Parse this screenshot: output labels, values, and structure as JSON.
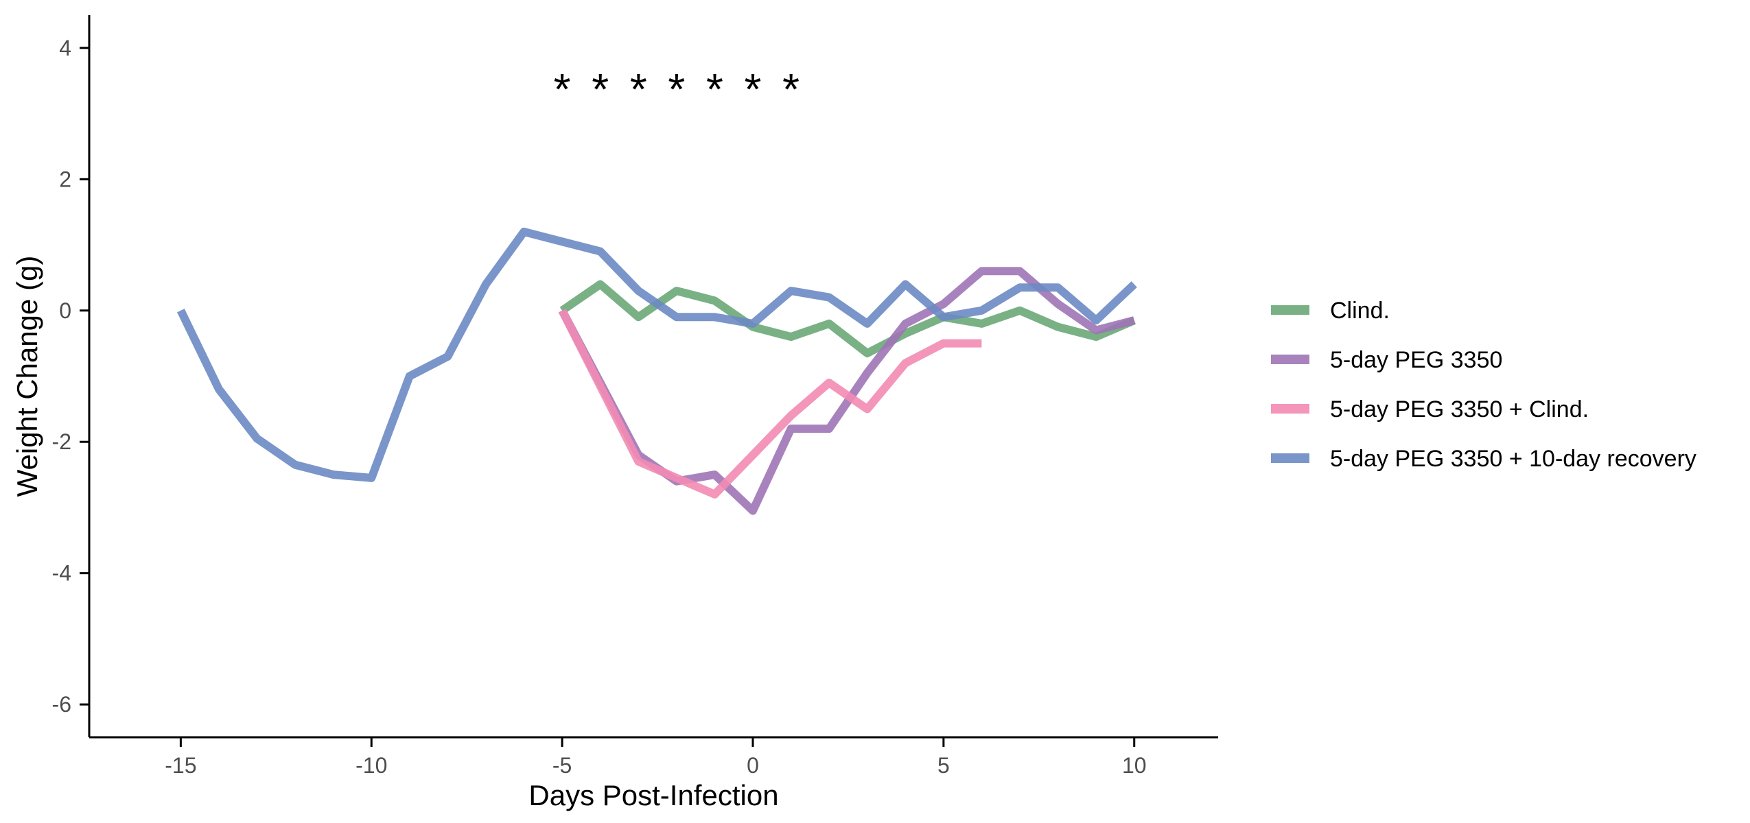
{
  "chart_data": {
    "type": "line",
    "xlabel": "Days Post-Infection",
    "ylabel": "Weight Change (g)",
    "xlim": [
      -17.4,
      12.2
    ],
    "ylim": [
      -6.5,
      4.5
    ],
    "x_ticks": [
      -15,
      -10,
      -5,
      0,
      5,
      10
    ],
    "x_tick_labels": [
      "-15",
      "-10",
      "-5",
      "0",
      "5",
      "10"
    ],
    "y_ticks": [
      4,
      2,
      0,
      -2,
      -4,
      -6
    ],
    "y_tick_labels": [
      "4",
      "2",
      "0",
      "-2",
      "-4",
      "-6"
    ],
    "grid": false,
    "legend_position": "right",
    "annotations": {
      "text": "*",
      "x": [
        -5,
        -4,
        -3,
        -2,
        -1,
        0,
        1
      ],
      "y": 3.6
    },
    "series": [
      {
        "name": "Clind.",
        "color": "#6aa878",
        "x": [
          -5,
          -4,
          -3,
          -2,
          -1,
          0,
          1,
          2,
          3,
          4,
          5,
          6,
          7,
          8,
          9,
          10
        ],
        "y": [
          0.0,
          0.4,
          -0.1,
          0.3,
          0.15,
          -0.25,
          -0.4,
          -0.2,
          -0.65,
          -0.35,
          -0.1,
          -0.2,
          0.0,
          -0.25,
          -0.4,
          -0.15
        ]
      },
      {
        "name": "5-day PEG 3350",
        "color": "#9e74b6",
        "x": [
          -5,
          -4,
          -3,
          -2,
          -1,
          0,
          1,
          2,
          3,
          4,
          5,
          6,
          7,
          8,
          9,
          10
        ],
        "y": [
          0.0,
          -1.1,
          -2.2,
          -2.6,
          -2.5,
          -3.05,
          -1.8,
          -1.8,
          -0.95,
          -0.2,
          0.1,
          0.6,
          0.6,
          0.1,
          -0.3,
          -0.15
        ]
      },
      {
        "name": "5-day PEG 3350 + Clind.",
        "color": "#f28bb3",
        "x": [
          -5,
          -4,
          -3,
          -2,
          -1,
          0,
          1,
          2,
          3,
          4,
          5,
          6
        ],
        "y": [
          0.0,
          -1.15,
          -2.3,
          -2.55,
          -2.8,
          -2.2,
          -1.6,
          -1.1,
          -1.5,
          -0.8,
          -0.5,
          -0.5
        ]
      },
      {
        "name": "5-day PEG 3350 + 10-day recovery",
        "color": "#6b8ac3",
        "x": [
          -15,
          -14,
          -13,
          -12,
          -11,
          -10,
          -9,
          -8,
          -7,
          -6,
          -5,
          -4,
          -3,
          -2,
          -1,
          0,
          1,
          2,
          3,
          4,
          5,
          6,
          7,
          8,
          9,
          10
        ],
        "y": [
          0.0,
          -1.2,
          -1.95,
          -2.35,
          -2.5,
          -2.55,
          -1.0,
          -0.7,
          0.4,
          1.2,
          1.05,
          0.9,
          0.3,
          -0.1,
          -0.1,
          -0.2,
          0.3,
          0.2,
          -0.2,
          0.4,
          -0.1,
          0.0,
          0.35,
          0.35,
          -0.15,
          0.4
        ]
      }
    ]
  }
}
